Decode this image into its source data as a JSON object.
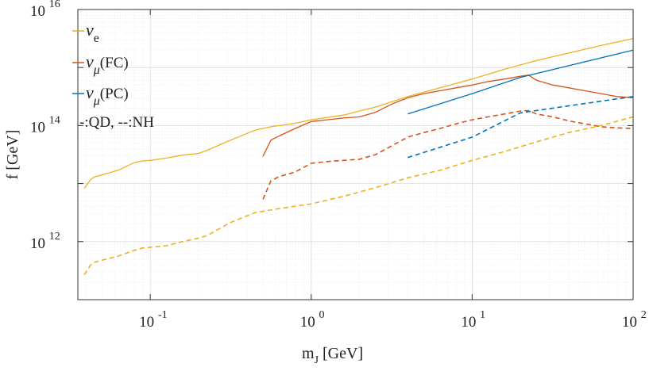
{
  "chart_data": {
    "type": "line",
    "title": "",
    "xlabel": "m_J [GeV]",
    "ylabel": "f [GeV]",
    "xscale": "log",
    "yscale": "log",
    "xlim_exp": [
      -1.45,
      2
    ],
    "ylim_exp": [
      11,
      16
    ],
    "grid": true,
    "x_ticks": [
      {
        "base": "10",
        "exp": "-1",
        "value": -1
      },
      {
        "base": "10",
        "exp": "0",
        "value": 0
      },
      {
        "base": "10",
        "exp": "1",
        "value": 1
      },
      {
        "base": "10",
        "exp": "2",
        "value": 2
      }
    ],
    "y_ticks": [
      {
        "base": "10",
        "exp": "12",
        "value": 12
      },
      {
        "base": "10",
        "exp": "14",
        "value": 14
      },
      {
        "base": "10",
        "exp": "16",
        "value": 16
      }
    ],
    "legend": {
      "position": "top-left",
      "entries": [
        {
          "symbol": "ν",
          "sub": "e",
          "suffix": "",
          "color": "#EDB120"
        },
        {
          "symbol": "ν",
          "sub": "μ",
          "suffix": "(FC)",
          "color": "#D95319"
        },
        {
          "symbol": "ν",
          "sub": "μ",
          "suffix": "(PC)",
          "color": "#0072BD"
        }
      ],
      "note": "-:QD, --:NH"
    },
    "series": [
      {
        "name": "nu_e QD",
        "color": "#EDB120",
        "style": "solid",
        "points": [
          [
            -1.41,
            12.92
          ],
          [
            -1.37,
            13.07
          ],
          [
            -1.35,
            13.11
          ],
          [
            -1.3,
            13.15
          ],
          [
            -1.2,
            13.23
          ],
          [
            -1.1,
            13.36
          ],
          [
            -1.05,
            13.39
          ],
          [
            -1.0,
            13.4
          ],
          [
            -0.9,
            13.44
          ],
          [
            -0.8,
            13.49
          ],
          [
            -0.7,
            13.52
          ],
          [
            -0.65,
            13.57
          ],
          [
            -0.5,
            13.75
          ],
          [
            -0.35,
            13.92
          ],
          [
            -0.25,
            13.98
          ],
          [
            -0.1,
            14.04
          ],
          [
            0.0,
            14.1
          ],
          [
            0.2,
            14.18
          ],
          [
            0.4,
            14.32
          ],
          [
            0.6,
            14.5
          ],
          [
            0.8,
            14.65
          ],
          [
            1.0,
            14.8
          ],
          [
            1.2,
            14.97
          ],
          [
            1.4,
            15.12
          ],
          [
            1.6,
            15.25
          ],
          [
            1.8,
            15.38
          ],
          [
            2.0,
            15.5
          ]
        ]
      },
      {
        "name": "nu_e NH",
        "color": "#EDB120",
        "style": "dashed",
        "points": [
          [
            -1.41,
            11.43
          ],
          [
            -1.37,
            11.6
          ],
          [
            -1.35,
            11.64
          ],
          [
            -1.3,
            11.68
          ],
          [
            -1.2,
            11.75
          ],
          [
            -1.1,
            11.85
          ],
          [
            -1.05,
            11.89
          ],
          [
            -0.9,
            11.93
          ],
          [
            -0.8,
            12.0
          ],
          [
            -0.7,
            12.06
          ],
          [
            -0.65,
            12.1
          ],
          [
            -0.5,
            12.33
          ],
          [
            -0.35,
            12.5
          ],
          [
            -0.2,
            12.57
          ],
          [
            0.0,
            12.65
          ],
          [
            0.2,
            12.78
          ],
          [
            0.4,
            12.93
          ],
          [
            0.6,
            13.1
          ],
          [
            0.8,
            13.23
          ],
          [
            1.0,
            13.4
          ],
          [
            1.2,
            13.55
          ],
          [
            1.4,
            13.72
          ],
          [
            1.6,
            13.88
          ],
          [
            1.8,
            14.0
          ],
          [
            2.0,
            14.15
          ]
        ]
      },
      {
        "name": "nu_mu(FC) QD",
        "color": "#D95319",
        "style": "solid",
        "points": [
          [
            -0.3,
            13.47
          ],
          [
            -0.25,
            13.75
          ],
          [
            -0.2,
            13.82
          ],
          [
            -0.1,
            13.95
          ],
          [
            0.0,
            14.07
          ],
          [
            0.1,
            14.1
          ],
          [
            0.2,
            14.13
          ],
          [
            0.3,
            14.15
          ],
          [
            0.4,
            14.23
          ],
          [
            0.5,
            14.37
          ],
          [
            0.6,
            14.48
          ],
          [
            0.7,
            14.55
          ],
          [
            0.8,
            14.6
          ],
          [
            0.9,
            14.65
          ],
          [
            1.0,
            14.7
          ],
          [
            1.1,
            14.76
          ],
          [
            1.2,
            14.8
          ],
          [
            1.3,
            14.85
          ],
          [
            1.35,
            14.87
          ],
          [
            1.4,
            14.78
          ],
          [
            1.5,
            14.7
          ],
          [
            1.6,
            14.65
          ],
          [
            1.7,
            14.6
          ],
          [
            1.8,
            14.55
          ],
          [
            1.9,
            14.5
          ],
          [
            2.0,
            14.48
          ]
        ]
      },
      {
        "name": "nu_mu(FC) NH",
        "color": "#D95319",
        "style": "dashed",
        "points": [
          [
            -0.3,
            12.73
          ],
          [
            -0.25,
            13.05
          ],
          [
            -0.2,
            13.12
          ],
          [
            -0.1,
            13.2
          ],
          [
            0.0,
            13.35
          ],
          [
            0.1,
            13.38
          ],
          [
            0.2,
            13.4
          ],
          [
            0.3,
            13.42
          ],
          [
            0.4,
            13.5
          ],
          [
            0.5,
            13.65
          ],
          [
            0.6,
            13.8
          ],
          [
            0.7,
            13.88
          ],
          [
            0.8,
            13.95
          ],
          [
            0.9,
            14.03
          ],
          [
            1.0,
            14.1
          ],
          [
            1.1,
            14.15
          ],
          [
            1.2,
            14.2
          ],
          [
            1.3,
            14.25
          ],
          [
            1.35,
            14.26
          ],
          [
            1.4,
            14.2
          ],
          [
            1.5,
            14.15
          ],
          [
            1.6,
            14.08
          ],
          [
            1.7,
            14.03
          ],
          [
            1.8,
            13.98
          ],
          [
            1.9,
            13.96
          ],
          [
            2.0,
            13.95
          ]
        ]
      },
      {
        "name": "nu_mu(PC) QD",
        "color": "#0072BD",
        "style": "solid",
        "points": [
          [
            0.6,
            14.2
          ],
          [
            1.0,
            14.55
          ],
          [
            1.3,
            14.83
          ],
          [
            2.0,
            15.3
          ]
        ]
      },
      {
        "name": "nu_mu(PC) NH",
        "color": "#0072BD",
        "style": "dashed",
        "points": [
          [
            0.6,
            13.45
          ],
          [
            1.0,
            13.8
          ],
          [
            1.3,
            14.22
          ],
          [
            2.0,
            14.5
          ]
        ]
      }
    ]
  }
}
